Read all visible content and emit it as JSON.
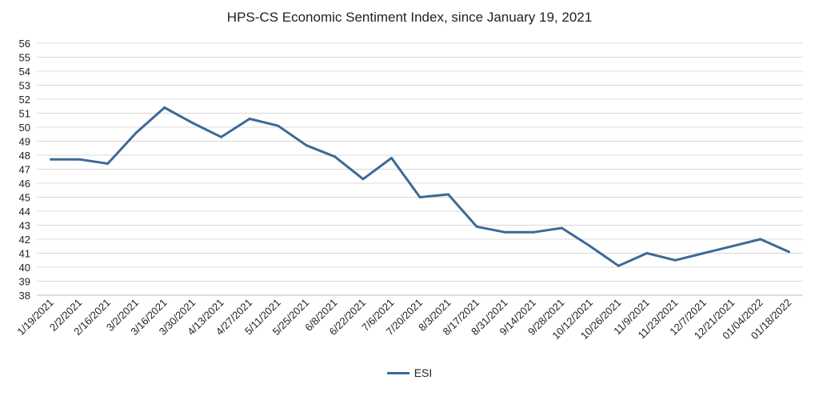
{
  "chart_data": {
    "type": "line",
    "title": "HPS-CS Economic Sentiment Index, since January 19, 2021",
    "xlabel": "",
    "ylabel": "",
    "categories": [
      "1/19/2021",
      "2/2/2021",
      "2/16/2021",
      "3/2/2021",
      "3/16/2021",
      "3/30/2021",
      "4/13/2021",
      "4/27/2021",
      "5/11/2021",
      "5/25/2021",
      "6/8/2021",
      "6/22/2021",
      "7/6/2021",
      "7/20/2021",
      "8/3/2021",
      "8/17/2021",
      "8/31/2021",
      "9/14/2021",
      "9/28/2021",
      "10/12/2021",
      "10/26/2021",
      "11/9/2021",
      "11/23/2021",
      "12/7/2021",
      "12/21/2021",
      "01/04/2022",
      "01/18/2022"
    ],
    "series": [
      {
        "name": "ESI",
        "color": "#3d6a96",
        "values": [
          47.7,
          47.7,
          47.4,
          49.6,
          51.4,
          50.3,
          49.3,
          50.6,
          50.1,
          48.7,
          47.9,
          46.3,
          47.8,
          45.0,
          45.2,
          42.9,
          42.5,
          42.5,
          42.8,
          41.5,
          40.1,
          41.0,
          40.5,
          41.0,
          41.5,
          42.0,
          41.1
        ]
      }
    ],
    "ylim": [
      38,
      56
    ],
    "yticks": [
      38,
      39,
      40,
      41,
      42,
      43,
      44,
      45,
      46,
      47,
      48,
      49,
      50,
      51,
      52,
      53,
      54,
      55,
      56
    ],
    "grid": true,
    "legend_position": "bottom"
  }
}
